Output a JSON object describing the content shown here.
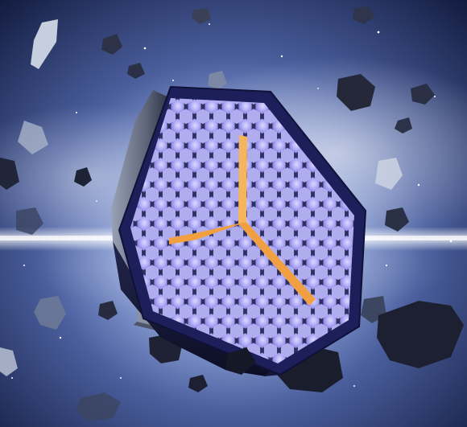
{
  "scene": {
    "subject": "hexagonal-light-panel",
    "background": "asteroid-field-in-space",
    "colors": {
      "space_dark": "#0b1230",
      "space_mid": "#4a62a8",
      "nebula_light": "#dfe9ff",
      "frame": "#1c1f5a",
      "frame_side": "#12143a",
      "panel_side_light": "#7b8396",
      "grid_glow": "#b8b6ff",
      "grid_bg": "#6f6ad8",
      "cross_bar": "#f0a040",
      "rock": "#2b3045",
      "rock_light": "#8b95ad"
    }
  }
}
